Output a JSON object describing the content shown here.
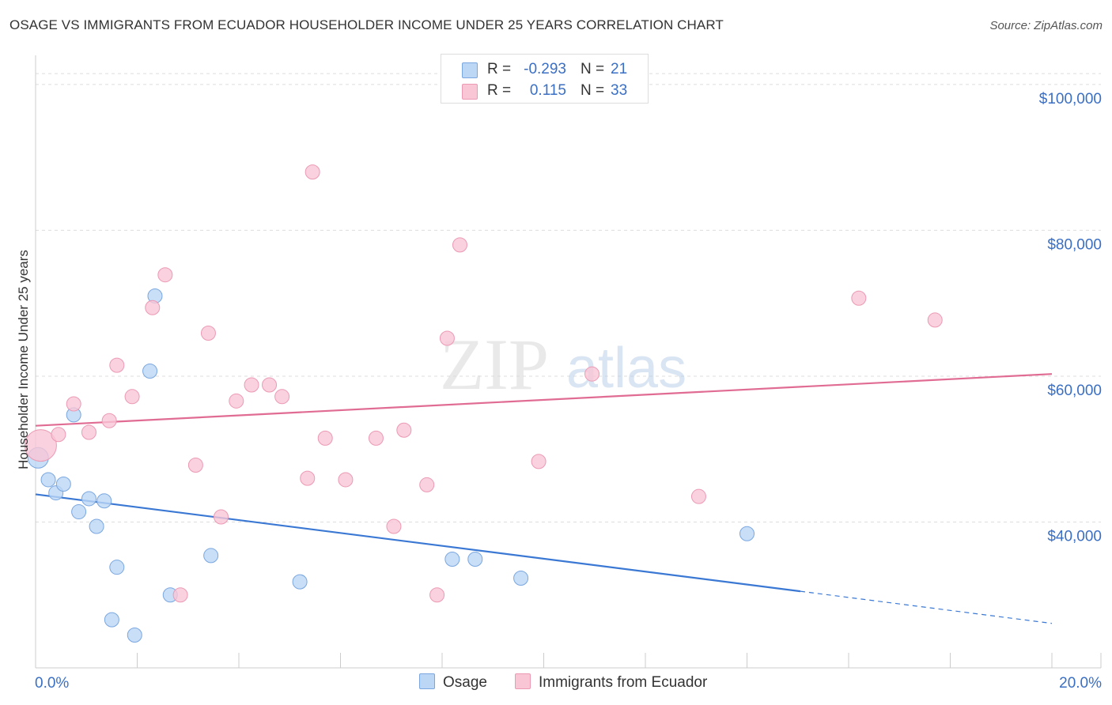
{
  "title": "OSAGE VS IMMIGRANTS FROM ECUADOR HOUSEHOLDER INCOME UNDER 25 YEARS CORRELATION CHART",
  "source": "Source: ZipAtlas.com",
  "watermark": {
    "zip": "ZIP",
    "atlas": "atlas"
  },
  "legend": {
    "rows": [
      {
        "r_label": "R =",
        "r_value": "-0.293",
        "n_label": "N =",
        "n_value": "21"
      },
      {
        "r_label": "R =",
        "r_value": "0.115",
        "n_label": "N =",
        "n_value": "33"
      }
    ]
  },
  "colors": {
    "blue_fill": "#bcd6f5",
    "blue_stroke": "#7aa7e0",
    "blue_line": "#3a78d4",
    "pink_fill": "#f9c6d6",
    "pink_stroke": "#ec9ab4",
    "pink_line": "#e06c93",
    "tick_label": "#3a6fc4",
    "grid": "#dddddd"
  },
  "chart_data": {
    "type": "scatter",
    "title": "OSAGE VS IMMIGRANTS FROM ECUADOR HOUSEHOLDER INCOME UNDER 25 YEARS CORRELATION CHART",
    "xlabel": "",
    "ylabel": "Householder Income Under 25 years",
    "xlim": [
      0,
      20
    ],
    "ylim": [
      20000,
      104000
    ],
    "x_tick_labels": [
      {
        "value": 0,
        "label": "0.0%"
      },
      {
        "value": 20,
        "label": "20.0%"
      }
    ],
    "y_ticks": [
      {
        "value": 40000,
        "label": "$40,000"
      },
      {
        "value": 60000,
        "label": "$60,000"
      },
      {
        "value": 80000,
        "label": "$80,000"
      },
      {
        "value": 100000,
        "label": "$100,000"
      }
    ],
    "series": [
      {
        "name": "Osage",
        "color_key": "blue",
        "points": [
          [
            0.05,
            48800,
            1
          ],
          [
            0.25,
            45800,
            0
          ],
          [
            0.4,
            44000,
            0
          ],
          [
            0.55,
            45200,
            0
          ],
          [
            0.75,
            54700,
            0
          ],
          [
            0.85,
            41400,
            0
          ],
          [
            1.05,
            43200,
            0
          ],
          [
            1.2,
            39400,
            0
          ],
          [
            1.35,
            42900,
            0
          ],
          [
            1.6,
            33800,
            0
          ],
          [
            1.5,
            26600,
            0
          ],
          [
            1.95,
            24500,
            0
          ],
          [
            2.25,
            60700,
            0
          ],
          [
            2.35,
            71000,
            0
          ],
          [
            2.65,
            30000,
            0
          ],
          [
            3.45,
            35400,
            0
          ],
          [
            5.2,
            31800,
            0
          ],
          [
            8.2,
            34900,
            0
          ],
          [
            8.65,
            34900,
            0
          ],
          [
            9.55,
            32300,
            0
          ],
          [
            14.0,
            38400,
            0
          ]
        ],
        "trend": {
          "x0": 0,
          "y0": 43800,
          "x1": 15.05,
          "y1": 30500,
          "dash_to_x": 20,
          "dash_to_y": 26100
        }
      },
      {
        "name": "Immigrants from Ecuador",
        "color_key": "pink",
        "points": [
          [
            0.1,
            50500,
            2
          ],
          [
            0.45,
            52000,
            0
          ],
          [
            0.75,
            56200,
            0
          ],
          [
            1.05,
            52300,
            0
          ],
          [
            1.45,
            53900,
            0
          ],
          [
            1.6,
            61500,
            0
          ],
          [
            1.9,
            57200,
            0
          ],
          [
            2.3,
            69400,
            0
          ],
          [
            2.55,
            73900,
            0
          ],
          [
            2.85,
            30000,
            0
          ],
          [
            3.15,
            47800,
            0
          ],
          [
            3.4,
            65900,
            0
          ],
          [
            3.65,
            40700,
            0
          ],
          [
            3.95,
            56600,
            0
          ],
          [
            4.25,
            58800,
            0
          ],
          [
            4.6,
            58800,
            0
          ],
          [
            4.85,
            57200,
            0
          ],
          [
            5.35,
            46000,
            0
          ],
          [
            5.45,
            88000,
            0
          ],
          [
            5.7,
            51500,
            0
          ],
          [
            6.1,
            45800,
            0
          ],
          [
            6.7,
            51500,
            0
          ],
          [
            7.05,
            39400,
            0
          ],
          [
            7.25,
            52600,
            0
          ],
          [
            7.7,
            45100,
            0
          ],
          [
            7.9,
            30000,
            0
          ],
          [
            8.1,
            65200,
            0
          ],
          [
            8.35,
            78000,
            0
          ],
          [
            9.9,
            48300,
            0
          ],
          [
            10.95,
            60300,
            0
          ],
          [
            13.05,
            43500,
            0
          ],
          [
            16.2,
            70700,
            0
          ],
          [
            17.7,
            67700,
            0
          ]
        ],
        "trend": {
          "x0": 0,
          "y0": 53200,
          "x1": 20,
          "y1": 60300
        }
      }
    ]
  },
  "bottom_legend": [
    {
      "label": "Osage",
      "color_key": "blue"
    },
    {
      "label": "Immigrants from Ecuador",
      "color_key": "pink"
    }
  ]
}
